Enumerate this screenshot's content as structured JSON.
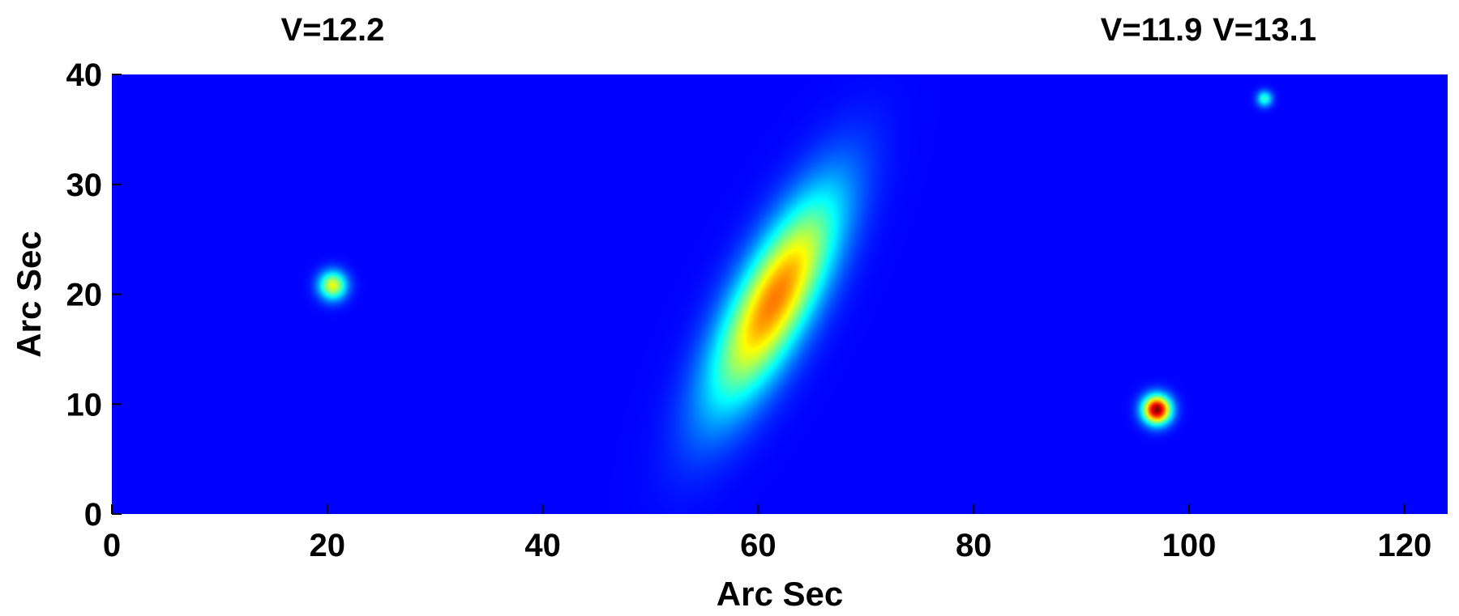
{
  "chart_data": {
    "type": "heatmap",
    "title": "",
    "xlabel": "Arc Sec",
    "ylabel": "Arc Sec",
    "xlim": [
      0,
      124
    ],
    "ylim": [
      0,
      40
    ],
    "xticks": [
      0,
      20,
      40,
      60,
      80,
      100,
      120
    ],
    "yticks": [
      0,
      10,
      20,
      30,
      40
    ],
    "grid": false,
    "colormap": "jet",
    "background_color": "#0000a0",
    "sources": [
      {
        "x": 20.5,
        "y": 20.8,
        "sigma_major": 0.9,
        "sigma_minor": 0.9,
        "angle_deg": 0,
        "peak": 0.55
      },
      {
        "x": 61.5,
        "y": 19.5,
        "sigma_major": 7.5,
        "sigma_minor": 2.4,
        "angle_deg": 62,
        "peak": 0.72
      },
      {
        "x": 97.0,
        "y": 9.5,
        "sigma_major": 0.9,
        "sigma_minor": 0.9,
        "angle_deg": 0,
        "peak": 1.0
      },
      {
        "x": 107.0,
        "y": 37.8,
        "sigma_major": 0.5,
        "sigma_minor": 0.5,
        "angle_deg": 0,
        "peak": 0.35
      }
    ],
    "annotations": [
      {
        "text": "V=12.2",
        "x": 20.5
      },
      {
        "text": "V=11.9",
        "x": 96.5
      },
      {
        "text": "V=13.1",
        "x": 107.0
      }
    ]
  }
}
